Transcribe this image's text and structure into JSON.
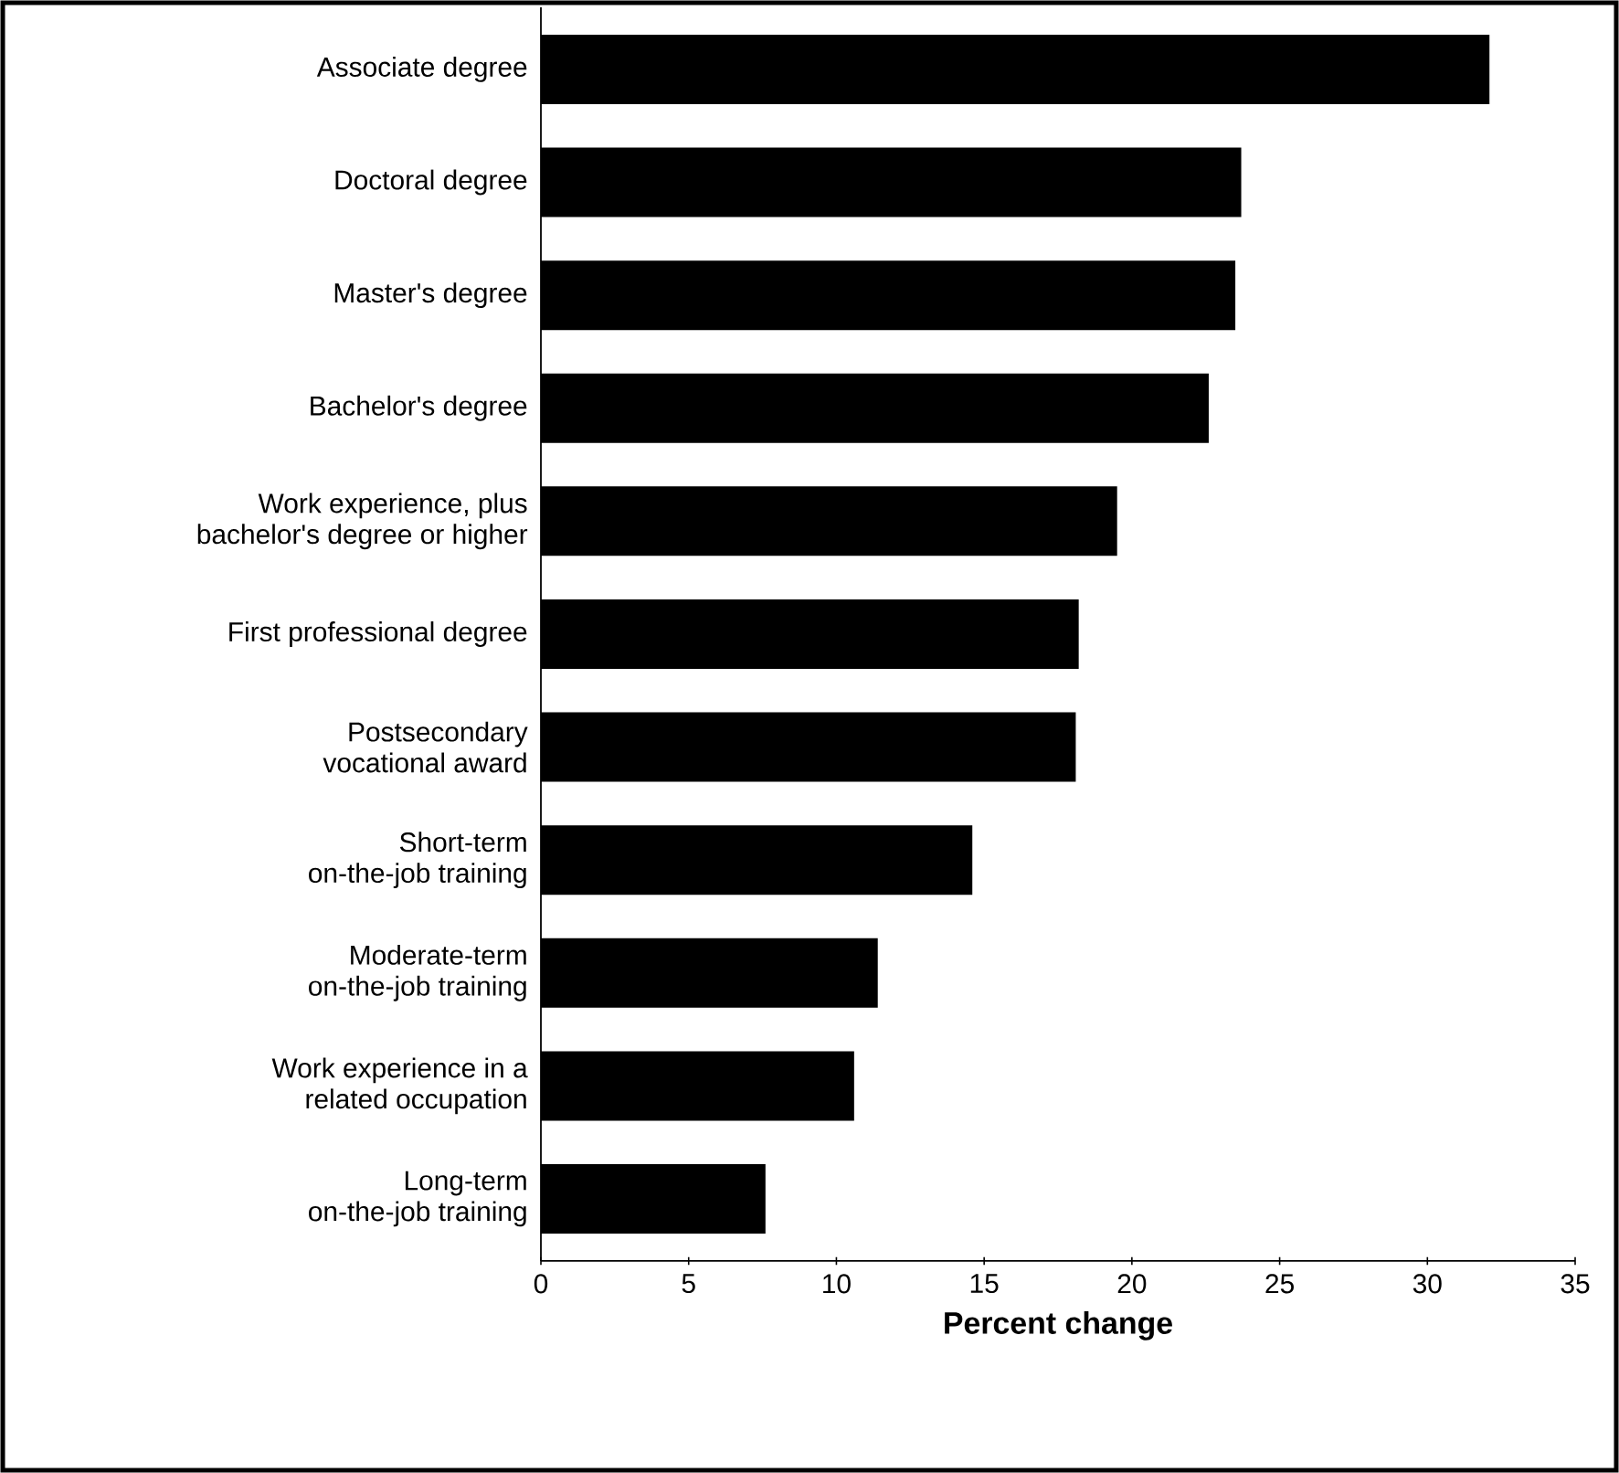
{
  "chart_data": {
    "type": "bar",
    "orientation": "horizontal",
    "xlabel": "Percent change",
    "color": "#000000",
    "categories": [
      "Associate degree",
      "Doctoral degree",
      "Master's degree",
      "Bachelor's degree",
      "Work experience, plus bachelor's degree or higher",
      "First professional degree",
      "Postsecondary vocational award",
      "Short-term on-the-job training",
      "Moderate-term on-the-job training",
      "Work experience in a related occupation",
      "Long-term on-the-job training"
    ],
    "values": [
      32.1,
      23.7,
      23.5,
      22.6,
      19.5,
      18.2,
      18.1,
      14.6,
      11.4,
      10.6,
      7.6
    ],
    "xlim": [
      0,
      35
    ],
    "xticks": [
      0,
      5,
      10,
      15,
      20,
      25,
      30,
      35
    ]
  }
}
